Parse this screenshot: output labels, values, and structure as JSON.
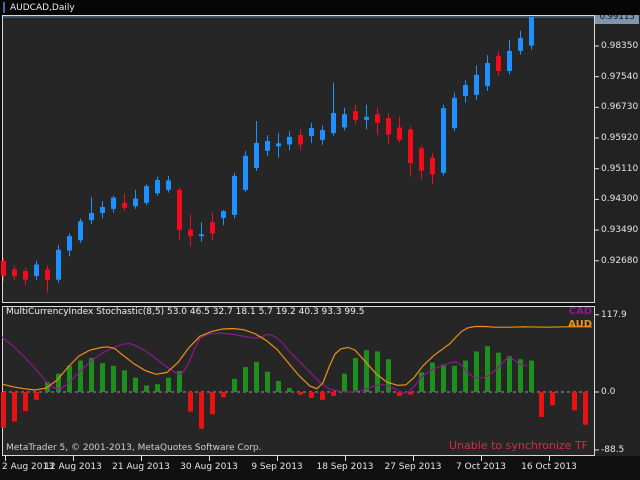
{
  "window": {
    "title": "AUDCAD,Daily"
  },
  "colors": {
    "panel_bg": "#262626",
    "panel_border": "#d9d9d9",
    "candle_up": "#1e90ff",
    "candle_down": "#f50a1e",
    "hist_up": "#1d8f1d",
    "hist_down": "#e81414",
    "aud_line": "#ef9018",
    "cad_line": "#8e188e",
    "price_line": "#5b7c95",
    "current_label_bg": "#7e96ac",
    "warning_red": "#dc2844",
    "zero_dash": "#98a0a8"
  },
  "price_axis": {
    "current": "0.99115",
    "labels": [
      "0.98350",
      "0.97540",
      "0.96730",
      "0.95920",
      "0.95110",
      "0.94300",
      "0.93490",
      "0.92680"
    ]
  },
  "time_axis": {
    "labels": [
      "2 Aug 2013",
      "12 Aug 2013",
      "21 Aug 2013",
      "30 Aug 2013",
      "9 Sep 2013",
      "18 Sep 2013",
      "27 Sep 2013",
      "7 Oct 2013",
      "16 Oct 2013"
    ]
  },
  "indicator": {
    "title": "MultiCurrencyIndex Stochastic(8,5) 53.0 46.5 32.7 18.1 5.7 19.2 40.3 93.3 99.5",
    "legend": {
      "cad": "CAD",
      "aud": "AUD"
    },
    "axis_labels": [
      "117.9",
      "0.0",
      "-88.5"
    ],
    "axis_values": [
      117.9,
      0.0,
      -88.5
    ],
    "warning": "Unable to synchronize TF"
  },
  "footer": {
    "copyright": "MetaTrader 5, © 2001-2013, MetaQuotes Software Corp."
  },
  "chart_data": [
    {
      "type": "candlestick",
      "symbol": "AUDCAD",
      "timeframe": "Daily",
      "title": "AUDCAD,Daily",
      "ylim": [
        0.9159,
        0.9917
      ],
      "current_price": 0.99115,
      "ohlc": [
        [
          0.9268,
          0.9276,
          0.9214,
          0.9228
        ],
        [
          0.9245,
          0.9255,
          0.9217,
          0.9227
        ],
        [
          0.9241,
          0.925,
          0.9204,
          0.9218
        ],
        [
          0.9228,
          0.9268,
          0.9217,
          0.9258
        ],
        [
          0.9245,
          0.9256,
          0.9184,
          0.9218
        ],
        [
          0.9218,
          0.931,
          0.921,
          0.9297
        ],
        [
          0.9295,
          0.934,
          0.928,
          0.9333
        ],
        [
          0.9322,
          0.938,
          0.9315,
          0.9372
        ],
        [
          0.9375,
          0.9436,
          0.9365,
          0.9394
        ],
        [
          0.9394,
          0.9425,
          0.938,
          0.941
        ],
        [
          0.9405,
          0.944,
          0.9395,
          0.9435
        ],
        [
          0.9421,
          0.9445,
          0.94,
          0.9408
        ],
        [
          0.9412,
          0.9455,
          0.9405,
          0.9432
        ],
        [
          0.9421,
          0.947,
          0.9415,
          0.9465
        ],
        [
          0.9446,
          0.949,
          0.944,
          0.9481
        ],
        [
          0.9455,
          0.9492,
          0.9448,
          0.948
        ],
        [
          0.9455,
          0.9462,
          0.9322,
          0.935
        ],
        [
          0.935,
          0.939,
          0.9307,
          0.9333
        ],
        [
          0.9333,
          0.937,
          0.9318,
          0.9338
        ],
        [
          0.937,
          0.9395,
          0.9322,
          0.934
        ],
        [
          0.9381,
          0.9402,
          0.9362,
          0.9399
        ],
        [
          0.9389,
          0.95,
          0.938,
          0.9492
        ],
        [
          0.9455,
          0.9558,
          0.945,
          0.9545
        ],
        [
          0.9513,
          0.9637,
          0.9505,
          0.9579
        ],
        [
          0.9558,
          0.96,
          0.9545,
          0.9584
        ],
        [
          0.957,
          0.9605,
          0.954,
          0.9578
        ],
        [
          0.9575,
          0.961,
          0.956,
          0.9595
        ],
        [
          0.96,
          0.9615,
          0.956,
          0.9575
        ],
        [
          0.9597,
          0.9632,
          0.9579,
          0.9618
        ],
        [
          0.9587,
          0.9625,
          0.9574,
          0.9613
        ],
        [
          0.9605,
          0.9738,
          0.9598,
          0.9658
        ],
        [
          0.962,
          0.9672,
          0.9612,
          0.9655
        ],
        [
          0.9663,
          0.968,
          0.9628,
          0.964
        ],
        [
          0.964,
          0.968,
          0.9615,
          0.9648
        ],
        [
          0.9655,
          0.9672,
          0.96,
          0.9632
        ],
        [
          0.9645,
          0.9658,
          0.9575,
          0.9601
        ],
        [
          0.962,
          0.9648,
          0.958,
          0.9587
        ],
        [
          0.9615,
          0.9622,
          0.949,
          0.9526
        ],
        [
          0.9565,
          0.9572,
          0.9484,
          0.9506
        ],
        [
          0.954,
          0.9552,
          0.947,
          0.9496
        ],
        [
          0.95,
          0.968,
          0.9493,
          0.9671
        ],
        [
          0.9618,
          0.9712,
          0.961,
          0.9698
        ],
        [
          0.9703,
          0.9745,
          0.9685,
          0.9732
        ],
        [
          0.9706,
          0.9783,
          0.9693,
          0.9759
        ],
        [
          0.9729,
          0.9811,
          0.9716,
          0.979
        ],
        [
          0.9809,
          0.982,
          0.9756,
          0.9769
        ],
        [
          0.9769,
          0.9851,
          0.976,
          0.9822
        ],
        [
          0.9822,
          0.9875,
          0.9812,
          0.9856
        ],
        [
          0.9836,
          0.9913,
          0.9825,
          0.99115
        ]
      ]
    },
    {
      "type": "bar",
      "title": "MultiCurrencyIndex Stochastic(8,5)",
      "current_values": [
        53.0,
        46.5,
        32.7,
        18.1,
        5.7,
        19.2,
        40.3,
        93.3,
        99.5
      ],
      "ylim": [
        -88.5,
        117.9
      ],
      "zero_line": 0,
      "histogram": [
        -55,
        -45,
        -29,
        -12,
        15,
        28,
        40,
        48,
        52,
        44,
        40,
        33,
        22,
        10,
        12,
        22,
        32,
        -30,
        -56,
        -34,
        -8,
        20,
        38,
        46,
        31,
        17,
        6,
        -4,
        -9,
        -12,
        -6,
        28,
        52,
        64,
        62,
        50,
        -6,
        -4,
        30,
        45,
        42,
        40,
        48,
        62,
        70,
        60,
        55,
        50,
        48
      ],
      "extra_histogram": [
        {
          "x": 541,
          "v": -38
        },
        {
          "x": 552,
          "v": -20
        },
        {
          "x": 574,
          "v": -28
        },
        {
          "x": 585,
          "v": -50
        }
      ],
      "series": [
        {
          "name": "CAD",
          "points": [
            [
              2,
              84
            ],
            [
              13,
              70
            ],
            [
              24,
              54
            ],
            [
              35,
              36
            ],
            [
              46,
              16
            ],
            [
              52,
              8
            ],
            [
              57,
              5
            ],
            [
              62,
              6
            ],
            [
              68,
              13
            ],
            [
              79,
              30
            ],
            [
              90,
              46
            ],
            [
              101,
              58
            ],
            [
              112,
              67
            ],
            [
              123,
              73
            ],
            [
              129,
              74
            ],
            [
              134,
              72
            ],
            [
              145,
              63
            ],
            [
              156,
              51
            ],
            [
              167,
              38
            ],
            [
              178,
              27
            ],
            [
              183,
              30
            ],
            [
              189,
              45
            ],
            [
              195,
              68
            ],
            [
              200,
              82
            ],
            [
              206,
              87
            ],
            [
              211,
              89
            ],
            [
              222,
              90
            ],
            [
              233,
              88
            ],
            [
              244,
              85
            ],
            [
              255,
              82
            ],
            [
              261,
              84
            ],
            [
              267,
              88
            ],
            [
              272,
              87
            ],
            [
              277,
              82
            ],
            [
              283,
              74
            ],
            [
              288,
              64
            ],
            [
              294,
              55
            ],
            [
              299,
              47
            ],
            [
              310,
              30
            ],
            [
              321,
              13
            ],
            [
              330,
              4
            ],
            [
              340,
              1
            ],
            [
              350,
              0
            ],
            [
              360,
              2
            ],
            [
              370,
              7
            ],
            [
              377,
              10
            ],
            [
              383,
              11
            ],
            [
              390,
              9
            ],
            [
              397,
              3
            ],
            [
              403,
              -2
            ],
            [
              408,
              0
            ],
            [
              414,
              8
            ],
            [
              423,
              25
            ],
            [
              434,
              36
            ],
            [
              445,
              41
            ],
            [
              451,
              45
            ],
            [
              456,
              46
            ],
            [
              462,
              40
            ],
            [
              467,
              30
            ],
            [
              473,
              23
            ],
            [
              478,
              21
            ],
            [
              484,
              22
            ],
            [
              489,
              26
            ],
            [
              495,
              33
            ],
            [
              500,
              41
            ],
            [
              505,
              49
            ],
            [
              509,
              54
            ],
            [
              514,
              49
            ],
            [
              519,
              43
            ],
            [
              527,
              40
            ]
          ]
        },
        {
          "name": "AUD",
          "points": [
            [
              2,
              12
            ],
            [
              13,
              8
            ],
            [
              24,
              5
            ],
            [
              35,
              3
            ],
            [
              46,
              6
            ],
            [
              57,
              18
            ],
            [
              68,
              38
            ],
            [
              79,
              55
            ],
            [
              90,
              64
            ],
            [
              101,
              68
            ],
            [
              108,
              69
            ],
            [
              115,
              66
            ],
            [
              123,
              56
            ],
            [
              134,
              43
            ],
            [
              145,
              33
            ],
            [
              156,
              27
            ],
            [
              167,
              30
            ],
            [
              178,
              45
            ],
            [
              189,
              68
            ],
            [
              200,
              85
            ],
            [
              211,
              92
            ],
            [
              222,
              96
            ],
            [
              233,
              97
            ],
            [
              244,
              95
            ],
            [
              255,
              89
            ],
            [
              266,
              79
            ],
            [
              277,
              65
            ],
            [
              288,
              45
            ],
            [
              299,
              25
            ],
            [
              310,
              9
            ],
            [
              317,
              5
            ],
            [
              323,
              14
            ],
            [
              329,
              38
            ],
            [
              335,
              58
            ],
            [
              341,
              66
            ],
            [
              348,
              68
            ],
            [
              355,
              64
            ],
            [
              365,
              47
            ],
            [
              376,
              28
            ],
            [
              387,
              15
            ],
            [
              398,
              10
            ],
            [
              406,
              11
            ],
            [
              414,
              22
            ],
            [
              423,
              40
            ],
            [
              434,
              56
            ],
            [
              443,
              66
            ],
            [
              450,
              74
            ],
            [
              456,
              84
            ],
            [
              462,
              93
            ],
            [
              468,
              98
            ],
            [
              475,
              100
            ],
            [
              485,
              100
            ],
            [
              495,
              99
            ],
            [
              510,
              99
            ],
            [
              525,
              99.5
            ],
            [
              545,
              99
            ],
            [
              565,
              99.5
            ],
            [
              592,
              99.5
            ]
          ]
        }
      ]
    }
  ]
}
